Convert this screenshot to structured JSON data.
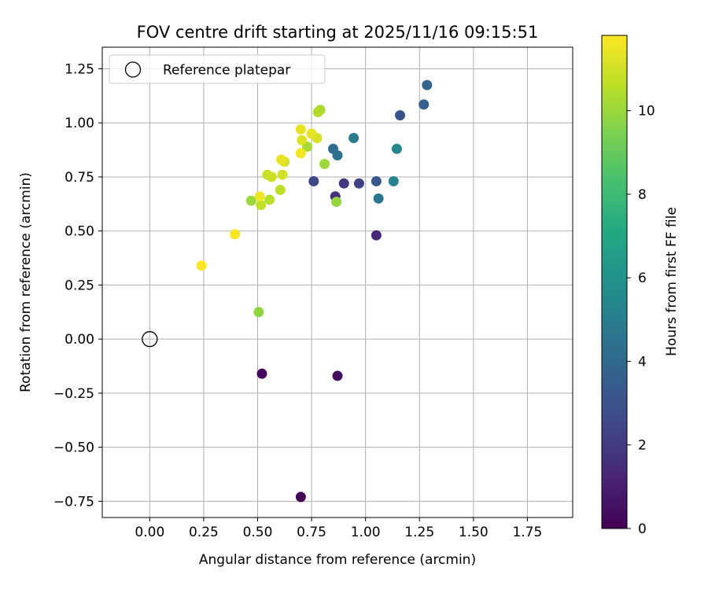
{
  "chart_data": {
    "type": "scatter",
    "title": "FOV centre drift starting at 2025/11/16 09:15:51",
    "xlabel": "Angular distance from reference (arcmin)",
    "ylabel": "Rotation from reference (arcmin)",
    "xlim": [
      -0.22,
      1.96
    ],
    "ylim": [
      -0.825,
      1.35
    ],
    "xticks": [
      0.0,
      0.25,
      0.5,
      0.75,
      1.0,
      1.25,
      1.5,
      1.75
    ],
    "xtick_labels": [
      "0.00",
      "0.25",
      "0.50",
      "0.75",
      "1.00",
      "1.25",
      "1.50",
      "1.75"
    ],
    "yticks": [
      -0.75,
      -0.5,
      -0.25,
      0.0,
      0.25,
      0.5,
      0.75,
      1.0,
      1.25
    ],
    "ytick_labels": [
      "−0.75",
      "−0.50",
      "−0.25",
      "0.00",
      "0.25",
      "0.50",
      "0.75",
      "1.00",
      "1.25"
    ],
    "grid": true,
    "legend": {
      "placement": "upper-left",
      "entries": [
        "Reference platepar"
      ]
    },
    "reference_point": {
      "x": 0.0,
      "y": 0.0
    },
    "colorbar": {
      "label": "Hours from first FF file",
      "colormap": "viridis",
      "range": [
        0,
        11.8
      ],
      "ticks": [
        0,
        2,
        4,
        6,
        8,
        10
      ],
      "tick_labels": [
        "0",
        "2",
        "4",
        "6",
        "8",
        "10"
      ]
    },
    "points": [
      {
        "x": 0.7,
        "y": -0.73,
        "hours": 0.0
      },
      {
        "x": 0.52,
        "y": -0.16,
        "hours": 0.2
      },
      {
        "x": 0.87,
        "y": -0.17,
        "hours": 0.4
      },
      {
        "x": 1.05,
        "y": 0.48,
        "hours": 1.3
      },
      {
        "x": 0.86,
        "y": 0.66,
        "hours": 1.6
      },
      {
        "x": 0.9,
        "y": 0.72,
        "hours": 1.9
      },
      {
        "x": 0.97,
        "y": 0.72,
        "hours": 2.2
      },
      {
        "x": 0.76,
        "y": 0.73,
        "hours": 2.5
      },
      {
        "x": 1.16,
        "y": 1.035,
        "hours": 3.0
      },
      {
        "x": 1.05,
        "y": 0.73,
        "hours": 3.2
      },
      {
        "x": 1.27,
        "y": 1.085,
        "hours": 3.6
      },
      {
        "x": 1.285,
        "y": 1.175,
        "hours": 3.8
      },
      {
        "x": 0.85,
        "y": 0.88,
        "hours": 4.2
      },
      {
        "x": 0.87,
        "y": 0.85,
        "hours": 4.4
      },
      {
        "x": 1.06,
        "y": 0.65,
        "hours": 4.6
      },
      {
        "x": 0.945,
        "y": 0.93,
        "hours": 4.9
      },
      {
        "x": 1.13,
        "y": 0.73,
        "hours": 5.2
      },
      {
        "x": 1.145,
        "y": 0.88,
        "hours": 5.4
      },
      {
        "x": 0.505,
        "y": 0.125,
        "hours": 9.8
      },
      {
        "x": 0.865,
        "y": 0.635,
        "hours": 9.9
      },
      {
        "x": 0.47,
        "y": 0.64,
        "hours": 10.0
      },
      {
        "x": 0.81,
        "y": 0.81,
        "hours": 10.1
      },
      {
        "x": 0.73,
        "y": 0.89,
        "hours": 10.2
      },
      {
        "x": 0.79,
        "y": 1.06,
        "hours": 10.3
      },
      {
        "x": 0.78,
        "y": 1.05,
        "hours": 10.4
      },
      {
        "x": 0.555,
        "y": 0.645,
        "hours": 10.5
      },
      {
        "x": 0.605,
        "y": 0.69,
        "hours": 10.6
      },
      {
        "x": 0.515,
        "y": 0.62,
        "hours": 10.7
      },
      {
        "x": 0.545,
        "y": 0.76,
        "hours": 10.8
      },
      {
        "x": 0.565,
        "y": 0.75,
        "hours": 10.9
      },
      {
        "x": 0.615,
        "y": 0.76,
        "hours": 11.0
      },
      {
        "x": 0.625,
        "y": 0.82,
        "hours": 11.1
      },
      {
        "x": 0.775,
        "y": 0.93,
        "hours": 11.1
      },
      {
        "x": 0.705,
        "y": 0.92,
        "hours": 11.2
      },
      {
        "x": 0.75,
        "y": 0.95,
        "hours": 11.3
      },
      {
        "x": 0.7,
        "y": 0.97,
        "hours": 11.4
      },
      {
        "x": 0.61,
        "y": 0.83,
        "hours": 11.4
      },
      {
        "x": 0.51,
        "y": 0.66,
        "hours": 11.5
      },
      {
        "x": 0.7,
        "y": 0.86,
        "hours": 11.6
      },
      {
        "x": 0.395,
        "y": 0.485,
        "hours": 11.7
      },
      {
        "x": 0.24,
        "y": 0.34,
        "hours": 11.8
      }
    ]
  }
}
